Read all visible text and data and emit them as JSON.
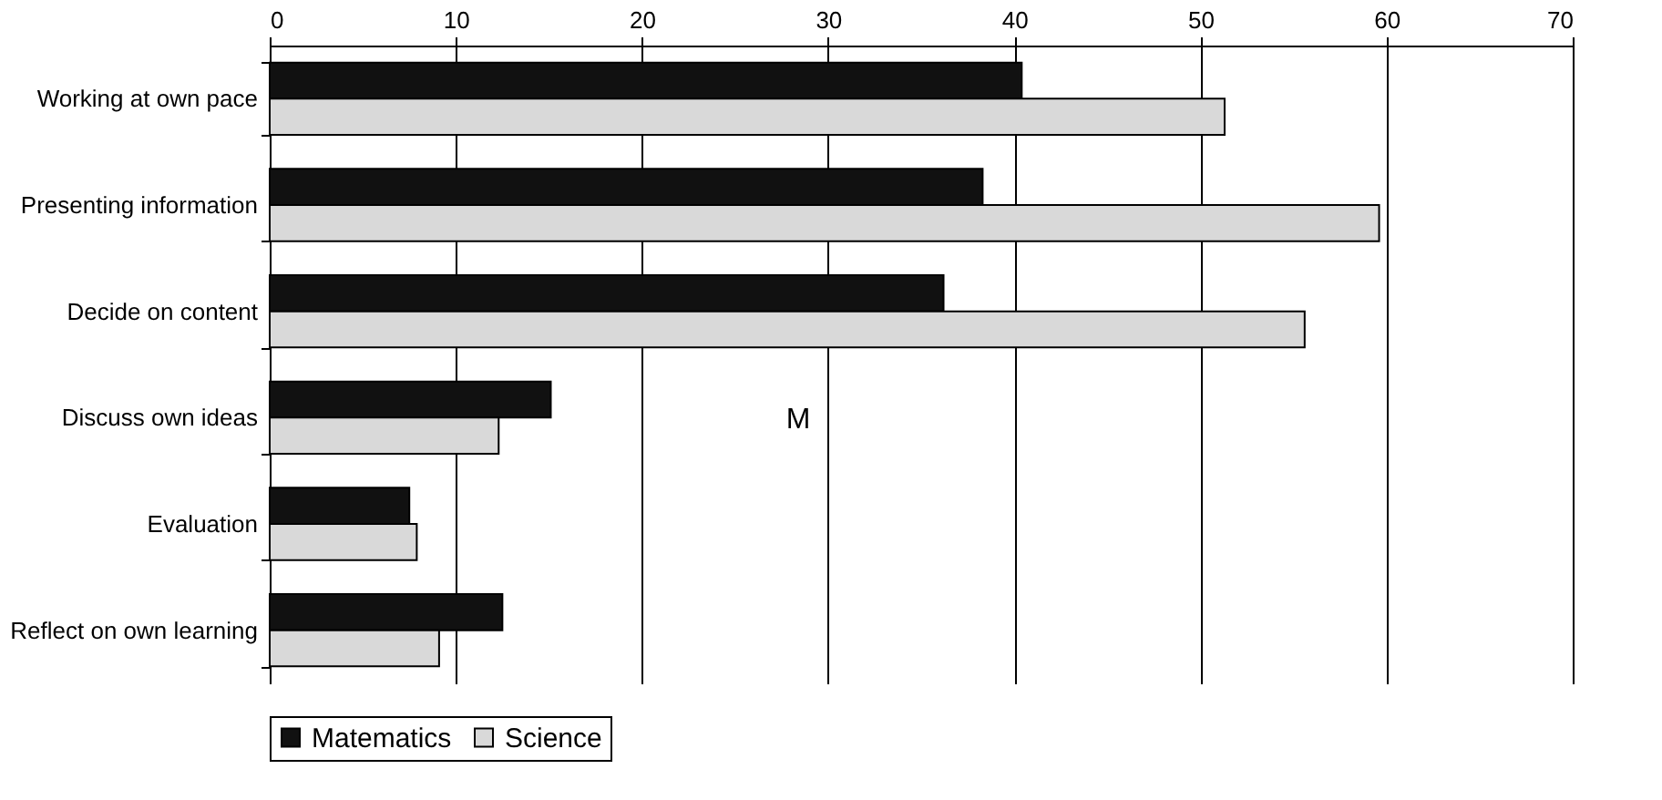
{
  "chart_data": {
    "type": "bar",
    "orientation": "horizontal",
    "categories": [
      "Working at own pace",
      "Presenting information",
      "Decide on content",
      "Discuss own ideas",
      "Evaluation",
      "Reflect on own learning"
    ],
    "series": [
      {
        "name": "Matematics",
        "color": "#111111",
        "values": [
          40.4,
          38.3,
          36.2,
          15.1,
          7.5,
          12.5
        ]
      },
      {
        "name": "Science",
        "color": "#d9d9d9",
        "values": [
          51.3,
          59.6,
          55.6,
          12.3,
          7.9,
          9.1
        ]
      }
    ],
    "xlim": [
      0,
      70
    ],
    "xticks": [
      0,
      10,
      20,
      30,
      40,
      50,
      60,
      70
    ],
    "grid": "x",
    "legend": "bottom",
    "annotations": [
      "M"
    ]
  }
}
